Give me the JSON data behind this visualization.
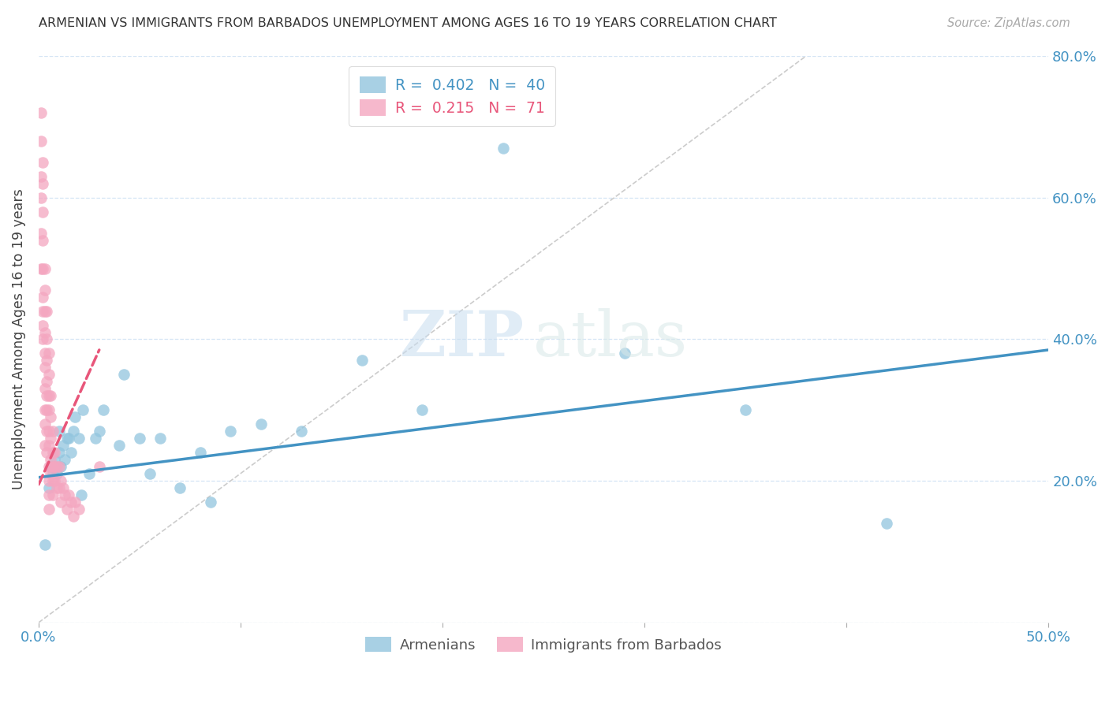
{
  "title": "ARMENIAN VS IMMIGRANTS FROM BARBADOS UNEMPLOYMENT AMONG AGES 16 TO 19 YEARS CORRELATION CHART",
  "source": "Source: ZipAtlas.com",
  "ylabel": "Unemployment Among Ages 16 to 19 years",
  "xlim": [
    0.0,
    0.5
  ],
  "ylim": [
    0.0,
    0.8
  ],
  "xticks": [
    0.0,
    0.1,
    0.2,
    0.3,
    0.4,
    0.5
  ],
  "xticklabels": [
    "0.0%",
    "",
    "",
    "",
    "",
    "50.0%"
  ],
  "yticks": [
    0.0,
    0.2,
    0.4,
    0.6,
    0.8
  ],
  "yticklabels_right": [
    "",
    "20.0%",
    "40.0%",
    "60.0%",
    "80.0%"
  ],
  "armenian_color": "#92c5de",
  "barbados_color": "#f4a6c0",
  "trendline_armenian_color": "#4393c3",
  "trendline_barbados_color": "#e8567a",
  "diagonal_color": "#cccccc",
  "R_armenian": 0.402,
  "N_armenian": 40,
  "R_barbados": 0.215,
  "N_barbados": 71,
  "legend_label_armenian": "Armenians",
  "legend_label_barbados": "Immigrants from Barbados",
  "watermark_zip": "ZIP",
  "watermark_atlas": "atlas",
  "armenian_x": [
    0.003,
    0.005,
    0.006,
    0.007,
    0.008,
    0.009,
    0.01,
    0.01,
    0.011,
    0.012,
    0.013,
    0.014,
    0.015,
    0.016,
    0.017,
    0.018,
    0.02,
    0.021,
    0.022,
    0.025,
    0.028,
    0.03,
    0.032,
    0.04,
    0.042,
    0.05,
    0.055,
    0.06,
    0.07,
    0.08,
    0.085,
    0.095,
    0.11,
    0.13,
    0.16,
    0.19,
    0.23,
    0.29,
    0.35,
    0.42
  ],
  "armenian_y": [
    0.11,
    0.19,
    0.22,
    0.21,
    0.23,
    0.21,
    0.24,
    0.27,
    0.22,
    0.25,
    0.23,
    0.26,
    0.26,
    0.24,
    0.27,
    0.29,
    0.26,
    0.18,
    0.3,
    0.21,
    0.26,
    0.27,
    0.3,
    0.25,
    0.35,
    0.26,
    0.21,
    0.26,
    0.19,
    0.24,
    0.17,
    0.27,
    0.28,
    0.27,
    0.37,
    0.3,
    0.67,
    0.38,
    0.3,
    0.14
  ],
  "barbados_x": [
    0.001,
    0.001,
    0.001,
    0.001,
    0.001,
    0.001,
    0.002,
    0.002,
    0.002,
    0.002,
    0.002,
    0.002,
    0.002,
    0.002,
    0.002,
    0.003,
    0.003,
    0.003,
    0.003,
    0.003,
    0.003,
    0.003,
    0.003,
    0.003,
    0.003,
    0.004,
    0.004,
    0.004,
    0.004,
    0.004,
    0.004,
    0.004,
    0.004,
    0.005,
    0.005,
    0.005,
    0.005,
    0.005,
    0.005,
    0.005,
    0.005,
    0.005,
    0.005,
    0.006,
    0.006,
    0.006,
    0.006,
    0.006,
    0.007,
    0.007,
    0.007,
    0.007,
    0.007,
    0.008,
    0.008,
    0.008,
    0.009,
    0.009,
    0.01,
    0.01,
    0.011,
    0.011,
    0.012,
    0.013,
    0.014,
    0.015,
    0.016,
    0.017,
    0.018,
    0.02,
    0.03
  ],
  "barbados_y": [
    0.72,
    0.68,
    0.63,
    0.6,
    0.55,
    0.5,
    0.65,
    0.62,
    0.58,
    0.54,
    0.5,
    0.46,
    0.44,
    0.42,
    0.4,
    0.5,
    0.47,
    0.44,
    0.41,
    0.38,
    0.36,
    0.33,
    0.3,
    0.28,
    0.25,
    0.44,
    0.4,
    0.37,
    0.34,
    0.32,
    0.3,
    0.27,
    0.24,
    0.38,
    0.35,
    0.32,
    0.3,
    0.27,
    0.25,
    0.22,
    0.2,
    0.18,
    0.16,
    0.32,
    0.29,
    0.26,
    0.23,
    0.21,
    0.27,
    0.24,
    0.22,
    0.2,
    0.18,
    0.24,
    0.22,
    0.2,
    0.22,
    0.19,
    0.22,
    0.19,
    0.2,
    0.17,
    0.19,
    0.18,
    0.16,
    0.18,
    0.17,
    0.15,
    0.17,
    0.16,
    0.22
  ],
  "armenian_trendline_x": [
    0.0,
    0.5
  ],
  "armenian_trendline_y": [
    0.205,
    0.385
  ],
  "barbados_trendline_x": [
    0.0,
    0.03
  ],
  "barbados_trendline_y": [
    0.195,
    0.385
  ]
}
